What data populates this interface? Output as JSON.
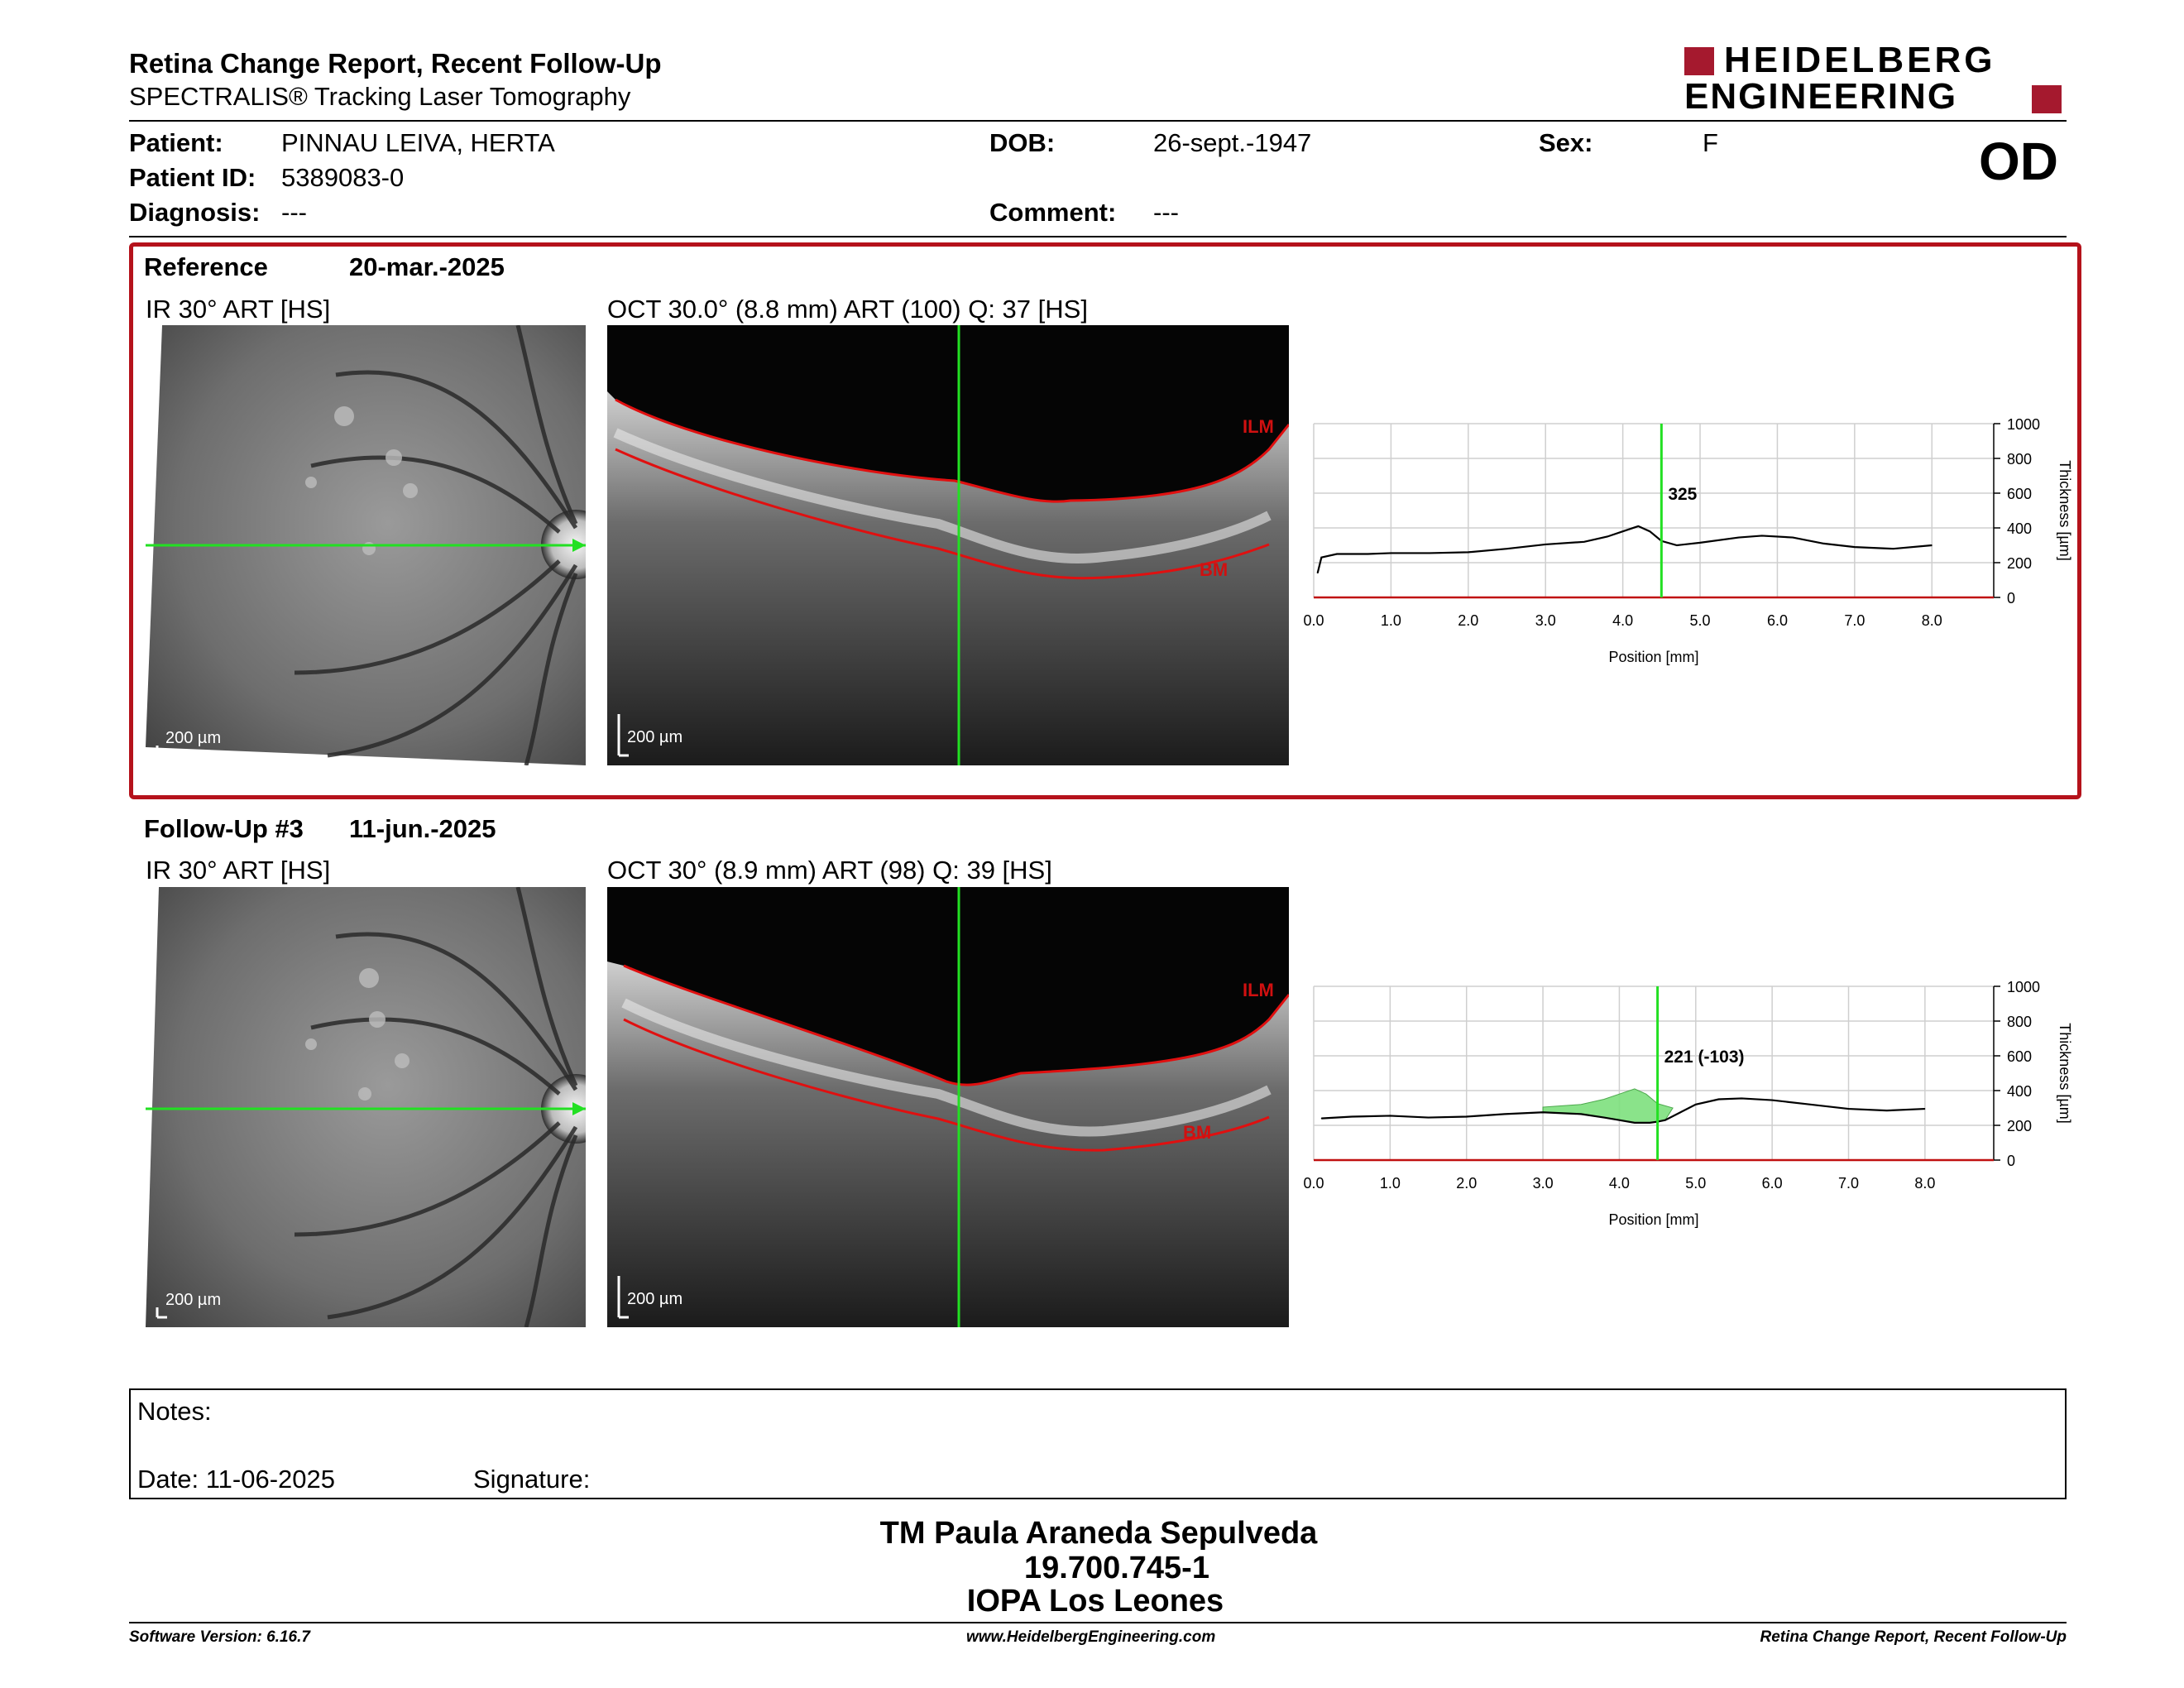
{
  "header": {
    "title": "Retina Change Report, Recent Follow-Up",
    "subtitle": "SPECTRALIS® Tracking Laser Tomography",
    "logo_line1": "HEIDELBERG",
    "logo_line2": "ENGINEERING",
    "brand_color": "#a5192e"
  },
  "patient": {
    "patient_label": "Patient:",
    "patient_value": "PINNAU LEIVA, HERTA",
    "dob_label": "DOB:",
    "dob_value": "26-sept.-1947",
    "sex_label": "Sex:",
    "sex_value": "F",
    "id_label": "Patient ID:",
    "id_value": "5389083-0",
    "diagnosis_label": "Diagnosis:",
    "diagnosis_value": "---",
    "comment_label": "Comment:",
    "comment_value": "---",
    "eye": "OD"
  },
  "reference": {
    "label": "Reference",
    "date": "20-mar.-2025",
    "ir_title": "IR 30° ART [HS]",
    "oct_title": "OCT 30.0° (8.8 mm) ART (100) Q: 37 [HS]",
    "ir_scale": "200 µm",
    "oct_scale": "200 µm",
    "ilm_label": "ILM",
    "bm_label": "BM",
    "value_label": "325"
  },
  "followup": {
    "label": "Follow-Up #3",
    "date": "11-jun.-2025",
    "ir_title": "IR 30° ART [HS]",
    "oct_title": "OCT 30° (8.9 mm) ART (98) Q: 39 [HS]",
    "ir_scale": "200 µm",
    "oct_scale": "200 µm",
    "ilm_label": "ILM",
    "bm_label": "BM",
    "value_label": "221 (-103)"
  },
  "chart_data": [
    {
      "type": "line",
      "xlabel": "Position [mm]",
      "ylabel": "Thickness [µm]",
      "xlim": [
        0,
        8.8
      ],
      "ylim": [
        0,
        1000
      ],
      "x_ticks": [
        "0.0",
        "1.0",
        "2.0",
        "3.0",
        "4.0",
        "5.0",
        "6.0",
        "7.0",
        "8.0"
      ],
      "y_ticks": [
        "0",
        "200",
        "400",
        "600",
        "800",
        "1000"
      ],
      "cursor_x": 4.5,
      "cursor_value": 325,
      "series": [
        {
          "x": [
            0.05,
            0.1,
            0.3,
            0.7,
            1.0,
            1.5,
            2.0,
            2.5,
            3.0,
            3.5,
            3.8,
            4.0,
            4.2,
            4.35,
            4.5,
            4.7,
            5.0,
            5.5,
            5.8,
            6.2,
            6.6,
            7.0,
            7.5,
            8.0
          ],
          "values": [
            140,
            230,
            250,
            250,
            255,
            255,
            260,
            280,
            305,
            320,
            350,
            380,
            410,
            380,
            325,
            300,
            315,
            345,
            355,
            345,
            310,
            290,
            280,
            300
          ]
        }
      ]
    },
    {
      "type": "line",
      "xlabel": "Position [mm]",
      "ylabel": "Thickness [µm]",
      "xlim": [
        0,
        8.9
      ],
      "ylim": [
        0,
        1000
      ],
      "x_ticks": [
        "0.0",
        "1.0",
        "2.0",
        "3.0",
        "4.0",
        "5.0",
        "6.0",
        "7.0",
        "8.0"
      ],
      "y_ticks": [
        "0",
        "200",
        "400",
        "600",
        "800",
        "1000"
      ],
      "cursor_x": 4.5,
      "cursor_value": 221,
      "cursor_change": -103,
      "series": [
        {
          "x": [
            0.1,
            0.5,
            1.0,
            1.5,
            2.0,
            2.5,
            3.0,
            3.5,
            3.8,
            4.0,
            4.2,
            4.4,
            4.5,
            4.6,
            4.8,
            5.0,
            5.3,
            5.6,
            6.0,
            6.5,
            7.0,
            7.5,
            8.0
          ],
          "values": [
            240,
            250,
            255,
            245,
            250,
            265,
            275,
            265,
            245,
            230,
            215,
            215,
            221,
            230,
            275,
            320,
            350,
            355,
            345,
            320,
            295,
            285,
            295
          ]
        }
      ]
    }
  ],
  "notes": {
    "label": "Notes:",
    "date_label": "Date: 11-06-2025",
    "signature_label": "Signature:"
  },
  "signature_block": {
    "name": "TM Paula Araneda Sepulveda",
    "id": "19.700.745-1",
    "institution": "IOPA Los Leones"
  },
  "footer": {
    "software": "Software Version: 6.16.7",
    "website": "www.HeidelbergEngineering.com",
    "report": "Retina Change Report, Recent Follow-Up"
  }
}
